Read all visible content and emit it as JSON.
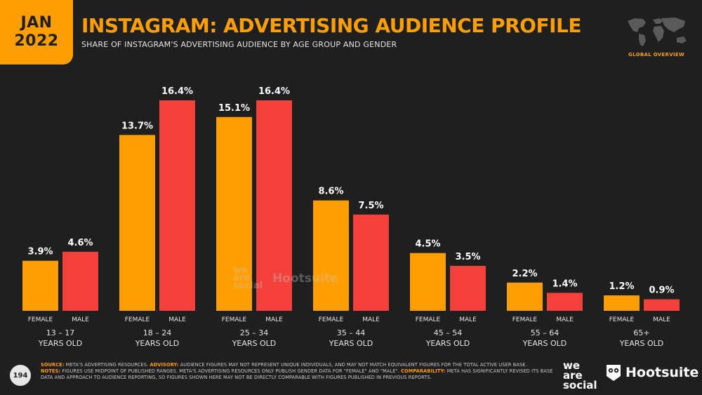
{
  "header": {
    "month": "JAN",
    "year": "2022",
    "title": "INSTAGRAM: ADVERTISING AUDIENCE PROFILE",
    "subtitle": "SHARE OF INSTAGRAM'S ADVERTISING AUDIENCE BY AGE GROUP AND GENDER",
    "section": "GLOBAL OVERVIEW"
  },
  "colors": {
    "female": "#ff9e00",
    "male": "#f5413b",
    "background": "#1f1f1f",
    "accent": "#ff9e00"
  },
  "chart_data": {
    "type": "bar",
    "categories": [
      {
        "line1": "13 – 17",
        "line2": "YEARS OLD"
      },
      {
        "line1": "18 – 24",
        "line2": "YEARS OLD"
      },
      {
        "line1": "25 – 34",
        "line2": "YEARS OLD"
      },
      {
        "line1": "35 – 44",
        "line2": "YEARS OLD"
      },
      {
        "line1": "45 – 54",
        "line2": "YEARS OLD"
      },
      {
        "line1": "55 – 64",
        "line2": "YEARS OLD"
      },
      {
        "line1": "65+",
        "line2": "YEARS OLD"
      }
    ],
    "series": [
      {
        "name": "FEMALE",
        "values": [
          3.9,
          13.7,
          15.1,
          8.6,
          4.5,
          2.2,
          1.2
        ],
        "labels": [
          "3.9%",
          "13.7%",
          "15.1%",
          "8.6%",
          "4.5%",
          "2.2%",
          "1.2%"
        ]
      },
      {
        "name": "MALE",
        "values": [
          4.6,
          16.4,
          16.4,
          7.5,
          3.5,
          1.4,
          0.9
        ],
        "labels": [
          "4.6%",
          "16.4%",
          "16.4%",
          "7.5%",
          "3.5%",
          "1.4%",
          "0.9%"
        ]
      }
    ],
    "ylim": [
      0,
      16.4
    ],
    "grid": false,
    "legend": "none"
  },
  "watermark": {
    "brand1_line1": "we",
    "brand1_line2": "are",
    "brand1_line3": "social",
    "brand2": "Hootsuite"
  },
  "footer": {
    "page_number": "194",
    "source_label": "SOURCE:",
    "source_text": "META'S ADVERTISING RESOURCES.",
    "advisory_label": "ADVISORY:",
    "advisory_text": "AUDIENCE FIGURES MAY NOT REPRESENT UNIQUE INDIVIDUALS, AND MAY NOT MATCH EQUIVALENT FIGURES FOR THE TOTAL ACTIVE USER BASE.",
    "notes_label": "NOTES:",
    "notes_text": "FIGURES USE MIDPOINT OF PUBLISHED RANGES. META'S ADVERTISING RESOURCES ONLY PUBLISH GENDER DATA FOR \"FEMALE\" AND \"MALE\".",
    "comparability_label": "COMPARABILITY:",
    "comparability_text": "META HAS SIGNIFICANTLY REVISED ITS BASE DATA AND APPROACH TO AUDIENCE REPORTING, SO FIGURES SHOWN HERE MAY NOT BE DIRECTLY COMPARABLE WITH FIGURES PUBLISHED IN PREVIOUS REPORTS.",
    "logo1_line1": "we",
    "logo1_line2": "are",
    "logo1_line3": "social",
    "logo2": "Hootsuite"
  }
}
